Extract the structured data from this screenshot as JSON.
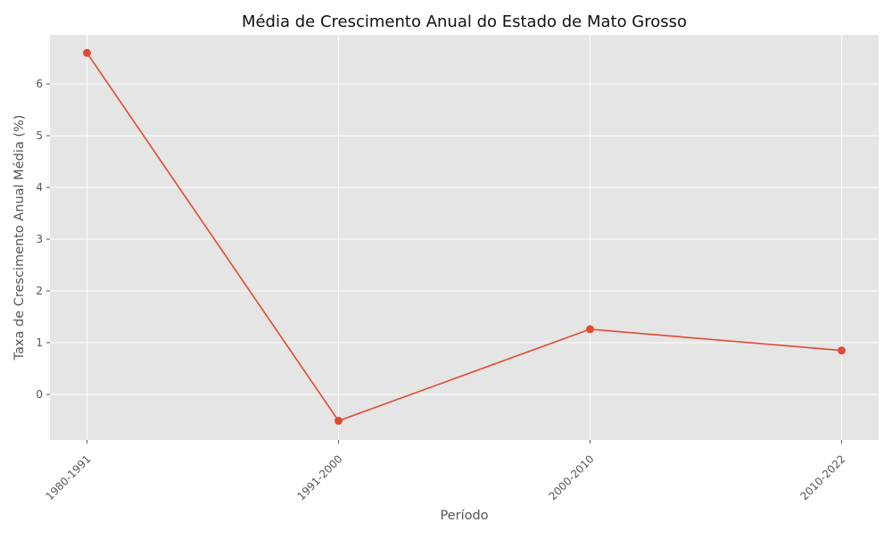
{
  "chart_data": {
    "type": "line",
    "title": "Média de Crescimento Anual do Estado de Mato Grosso",
    "xlabel": "Período",
    "ylabel": "Taxa de Crescimento Anual Média (%)",
    "categories": [
      "1980-1991",
      "1991-2000",
      "2000-2010",
      "2010-2022"
    ],
    "series": [
      {
        "values": [
          6.6,
          -0.51,
          1.26,
          0.85
        ],
        "color": "#E24A33",
        "marker": "circle"
      }
    ],
    "ylim": [
      -0.88,
      6.95
    ],
    "yticks": [
      0,
      1,
      2,
      3,
      4,
      5,
      6
    ],
    "grid": true,
    "background_color": "#E5E5E5",
    "grid_color": "#FFFFFF",
    "x_tick_rotation_deg": 45
  }
}
